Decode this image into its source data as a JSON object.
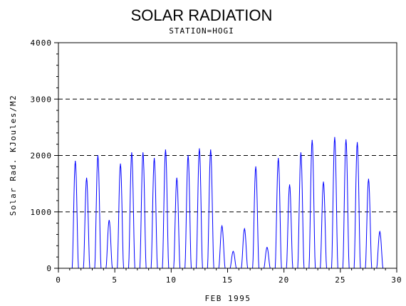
{
  "chart_data": {
    "type": "line",
    "title": "SOLAR RADIATION",
    "subtitle": "STATION=HOGI",
    "xlabel": "FEB 1995",
    "ylabel": "Solar Rad. KJoules/M2",
    "xlim": [
      0,
      30
    ],
    "ylim": [
      0,
      4000
    ],
    "x_ticks": [
      "0",
      "5",
      "10",
      "15",
      "20",
      "25",
      "30"
    ],
    "y_ticks": [
      "0",
      "1000",
      "2000",
      "3000",
      "4000"
    ],
    "grid": "horizontal dashed",
    "series": [
      {
        "color": "#0000ff",
        "daily_peaks": [
          {
            "day": 1.5,
            "value": 1900
          },
          {
            "day": 2.5,
            "value": 1600
          },
          {
            "day": 3.5,
            "value": 2000
          },
          {
            "day": 4.5,
            "value": 850
          },
          {
            "day": 5.5,
            "value": 1850
          },
          {
            "day": 6.5,
            "value": 2050
          },
          {
            "day": 7.5,
            "value": 2050
          },
          {
            "day": 8.5,
            "value": 1950
          },
          {
            "day": 9.5,
            "value": 2100
          },
          {
            "day": 10.5,
            "value": 1600
          },
          {
            "day": 11.5,
            "value": 2000
          },
          {
            "day": 12.5,
            "value": 2120
          },
          {
            "day": 13.5,
            "value": 2100
          },
          {
            "day": 14.5,
            "value": 750
          },
          {
            "day": 15.5,
            "value": 300
          },
          {
            "day": 16.5,
            "value": 700
          },
          {
            "day": 17.5,
            "value": 1800
          },
          {
            "day": 18.5,
            "value": 370
          },
          {
            "day": 19.5,
            "value": 1950
          },
          {
            "day": 20.5,
            "value": 1480
          },
          {
            "day": 21.5,
            "value": 2050
          },
          {
            "day": 22.5,
            "value": 2270
          },
          {
            "day": 23.5,
            "value": 1530
          },
          {
            "day": 24.5,
            "value": 2320
          },
          {
            "day": 25.5,
            "value": 2280
          },
          {
            "day": 26.5,
            "value": 2230
          },
          {
            "day": 27.5,
            "value": 1580
          },
          {
            "day": 28.5,
            "value": 650
          }
        ]
      }
    ]
  }
}
